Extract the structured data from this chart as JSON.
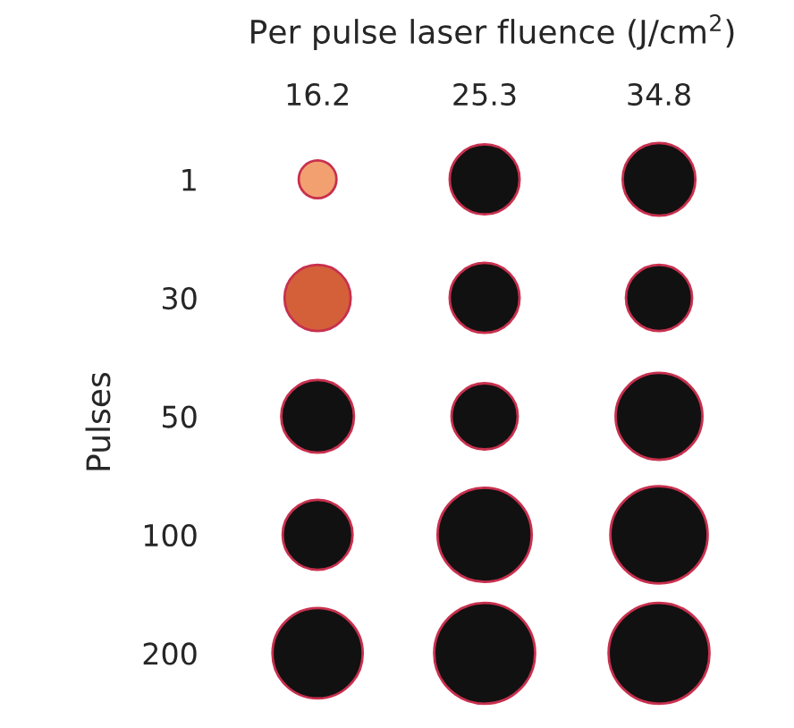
{
  "chart_data": {
    "type": "bubble",
    "orientation": "horizontal",
    "title": "Per pulse laser fluence (J/cm$^{2}$)",
    "ylabel": "Pulses",
    "categories": [
      "1",
      "30",
      "50",
      "100",
      "200"
    ],
    "xlim": [
      16.2,
      34.8
    ],
    "xticks": [
      16.2,
      25.3,
      34.8
    ],
    "series": [
      {
        "values": [
          16.2,
          16.2,
          16.2,
          16.2,
          16.2
        ],
        "sizes": [
          0.14,
          0.43,
          0.52,
          0.48,
          0.8
        ],
        "colors": [
          "#f2a070",
          "#d4603a",
          "#111111",
          "#111111",
          "#111111"
        ]
      },
      {
        "values": [
          25.3,
          25.3,
          25.3,
          25.3,
          25.3
        ],
        "sizes": [
          0.48,
          0.48,
          0.43,
          0.87,
          1
        ],
        "colors": [
          "#111111",
          "#111111",
          "#111111",
          "#111111",
          "#111111"
        ]
      },
      {
        "values": [
          34.8,
          34.8,
          34.8,
          34.8,
          34.8
        ],
        "sizes": [
          0.52,
          0.43,
          0.74,
          0.93,
          1
        ],
        "colors": [
          "#111111",
          "#111111",
          "#111111",
          "#111111",
          "#111111"
        ]
      }
    ]
  }
}
